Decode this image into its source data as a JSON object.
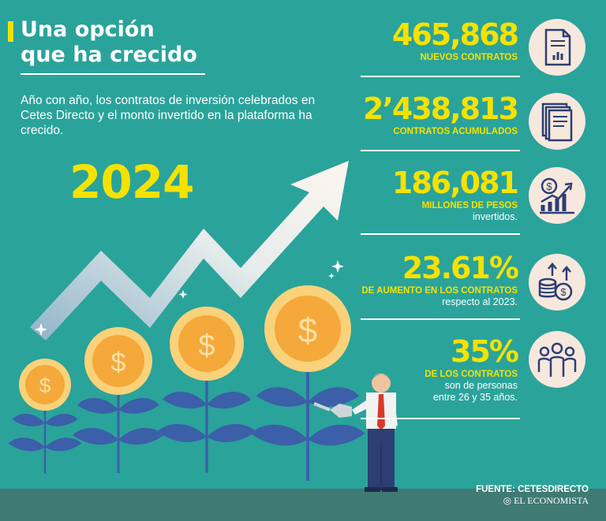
{
  "title_line1": "Una opción",
  "title_line2": "que ha crecido",
  "intro": "Año con año, los contratos de inversión celebrados en Cetes Directo y el monto invertido en la plataforma ha crecido.",
  "year": "2024",
  "stats": [
    {
      "value": "465,868",
      "label": "NUEVOS CONTRATOS",
      "icon": "document-chart-icon"
    },
    {
      "value": "2’438,813",
      "label": "CONTRATOS ACUMULADOS",
      "icon": "stacked-documents-icon"
    },
    {
      "value": "186,081",
      "label": "MILLONES DE PESOS",
      "sub": "invertidos.",
      "icon": "money-growth-chart-icon"
    },
    {
      "value": "23.61%",
      "label": "DE AUMENTO EN LOS CONTRATOS",
      "sub": "respecto al 2023.",
      "icon": "coins-arrows-icon"
    },
    {
      "value": "35%",
      "label": "DE LOS CONTRATOS",
      "sub1": "son de personas",
      "sub2": "entre 26 y 35 años.",
      "icon": "people-group-icon"
    }
  ],
  "source": "FUENTE: CETESDIRECTO",
  "brand": "EL ECONOMISTA",
  "coin_symbol": "$",
  "colors": {
    "background": "#2aa39b",
    "accent": "#f5e200",
    "coin": "#f4a93a",
    "leaf": "#3b5fa8",
    "text": "#ffffff"
  }
}
